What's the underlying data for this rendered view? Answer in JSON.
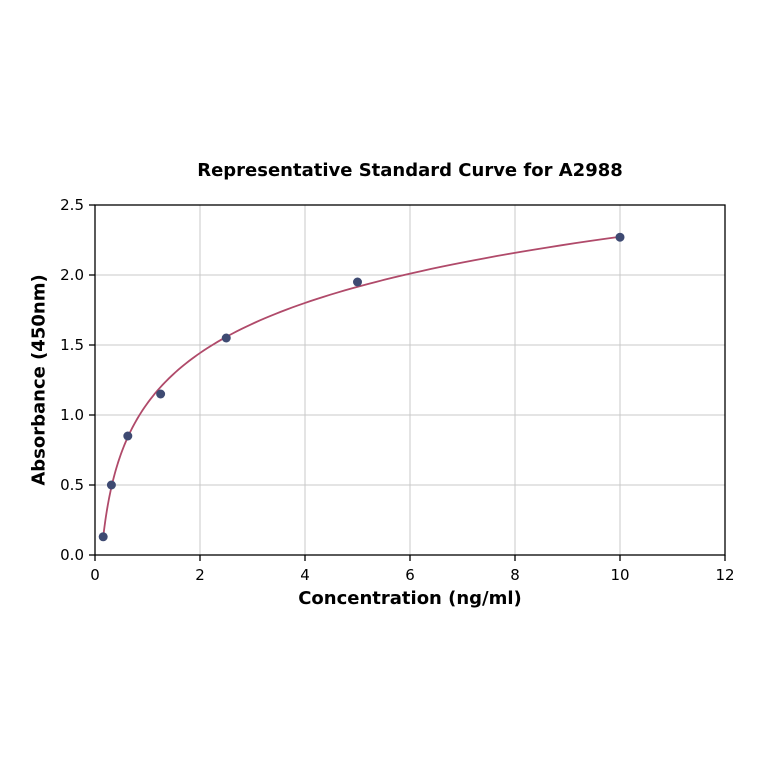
{
  "chart_data": {
    "type": "scatter",
    "title": "Representative Standard Curve for A2988",
    "xlabel": "Concentration (ng/ml)",
    "ylabel": "Absorbance (450nm)",
    "xlim": [
      0,
      12
    ],
    "ylim": [
      0,
      2.5
    ],
    "xticks": [
      0,
      2,
      4,
      6,
      8,
      10,
      12
    ],
    "xtick_labels": [
      "0",
      "2",
      "4",
      "6",
      "8",
      "10",
      "12"
    ],
    "yticks": [
      0,
      0.5,
      1,
      1.5,
      2,
      2.5
    ],
    "ytick_labels": [
      "0.0",
      "0.5",
      "1.0",
      "1.5",
      "2.0",
      "2.5"
    ],
    "grid": true,
    "legend": "none",
    "curve_fit": "logarithmic",
    "points": [
      {
        "x": 0.156,
        "y": 0.13
      },
      {
        "x": 0.3125,
        "y": 0.5
      },
      {
        "x": 0.625,
        "y": 0.85
      },
      {
        "x": 1.25,
        "y": 1.15
      },
      {
        "x": 2.5,
        "y": 1.55
      },
      {
        "x": 5.0,
        "y": 1.95
      },
      {
        "x": 10.0,
        "y": 2.27
      }
    ],
    "colors": {
      "curve": "#b04a6a",
      "points": "#3e4a72",
      "grid": "#c9c9c9",
      "axis": "#000000",
      "background": "#ffffff"
    }
  }
}
